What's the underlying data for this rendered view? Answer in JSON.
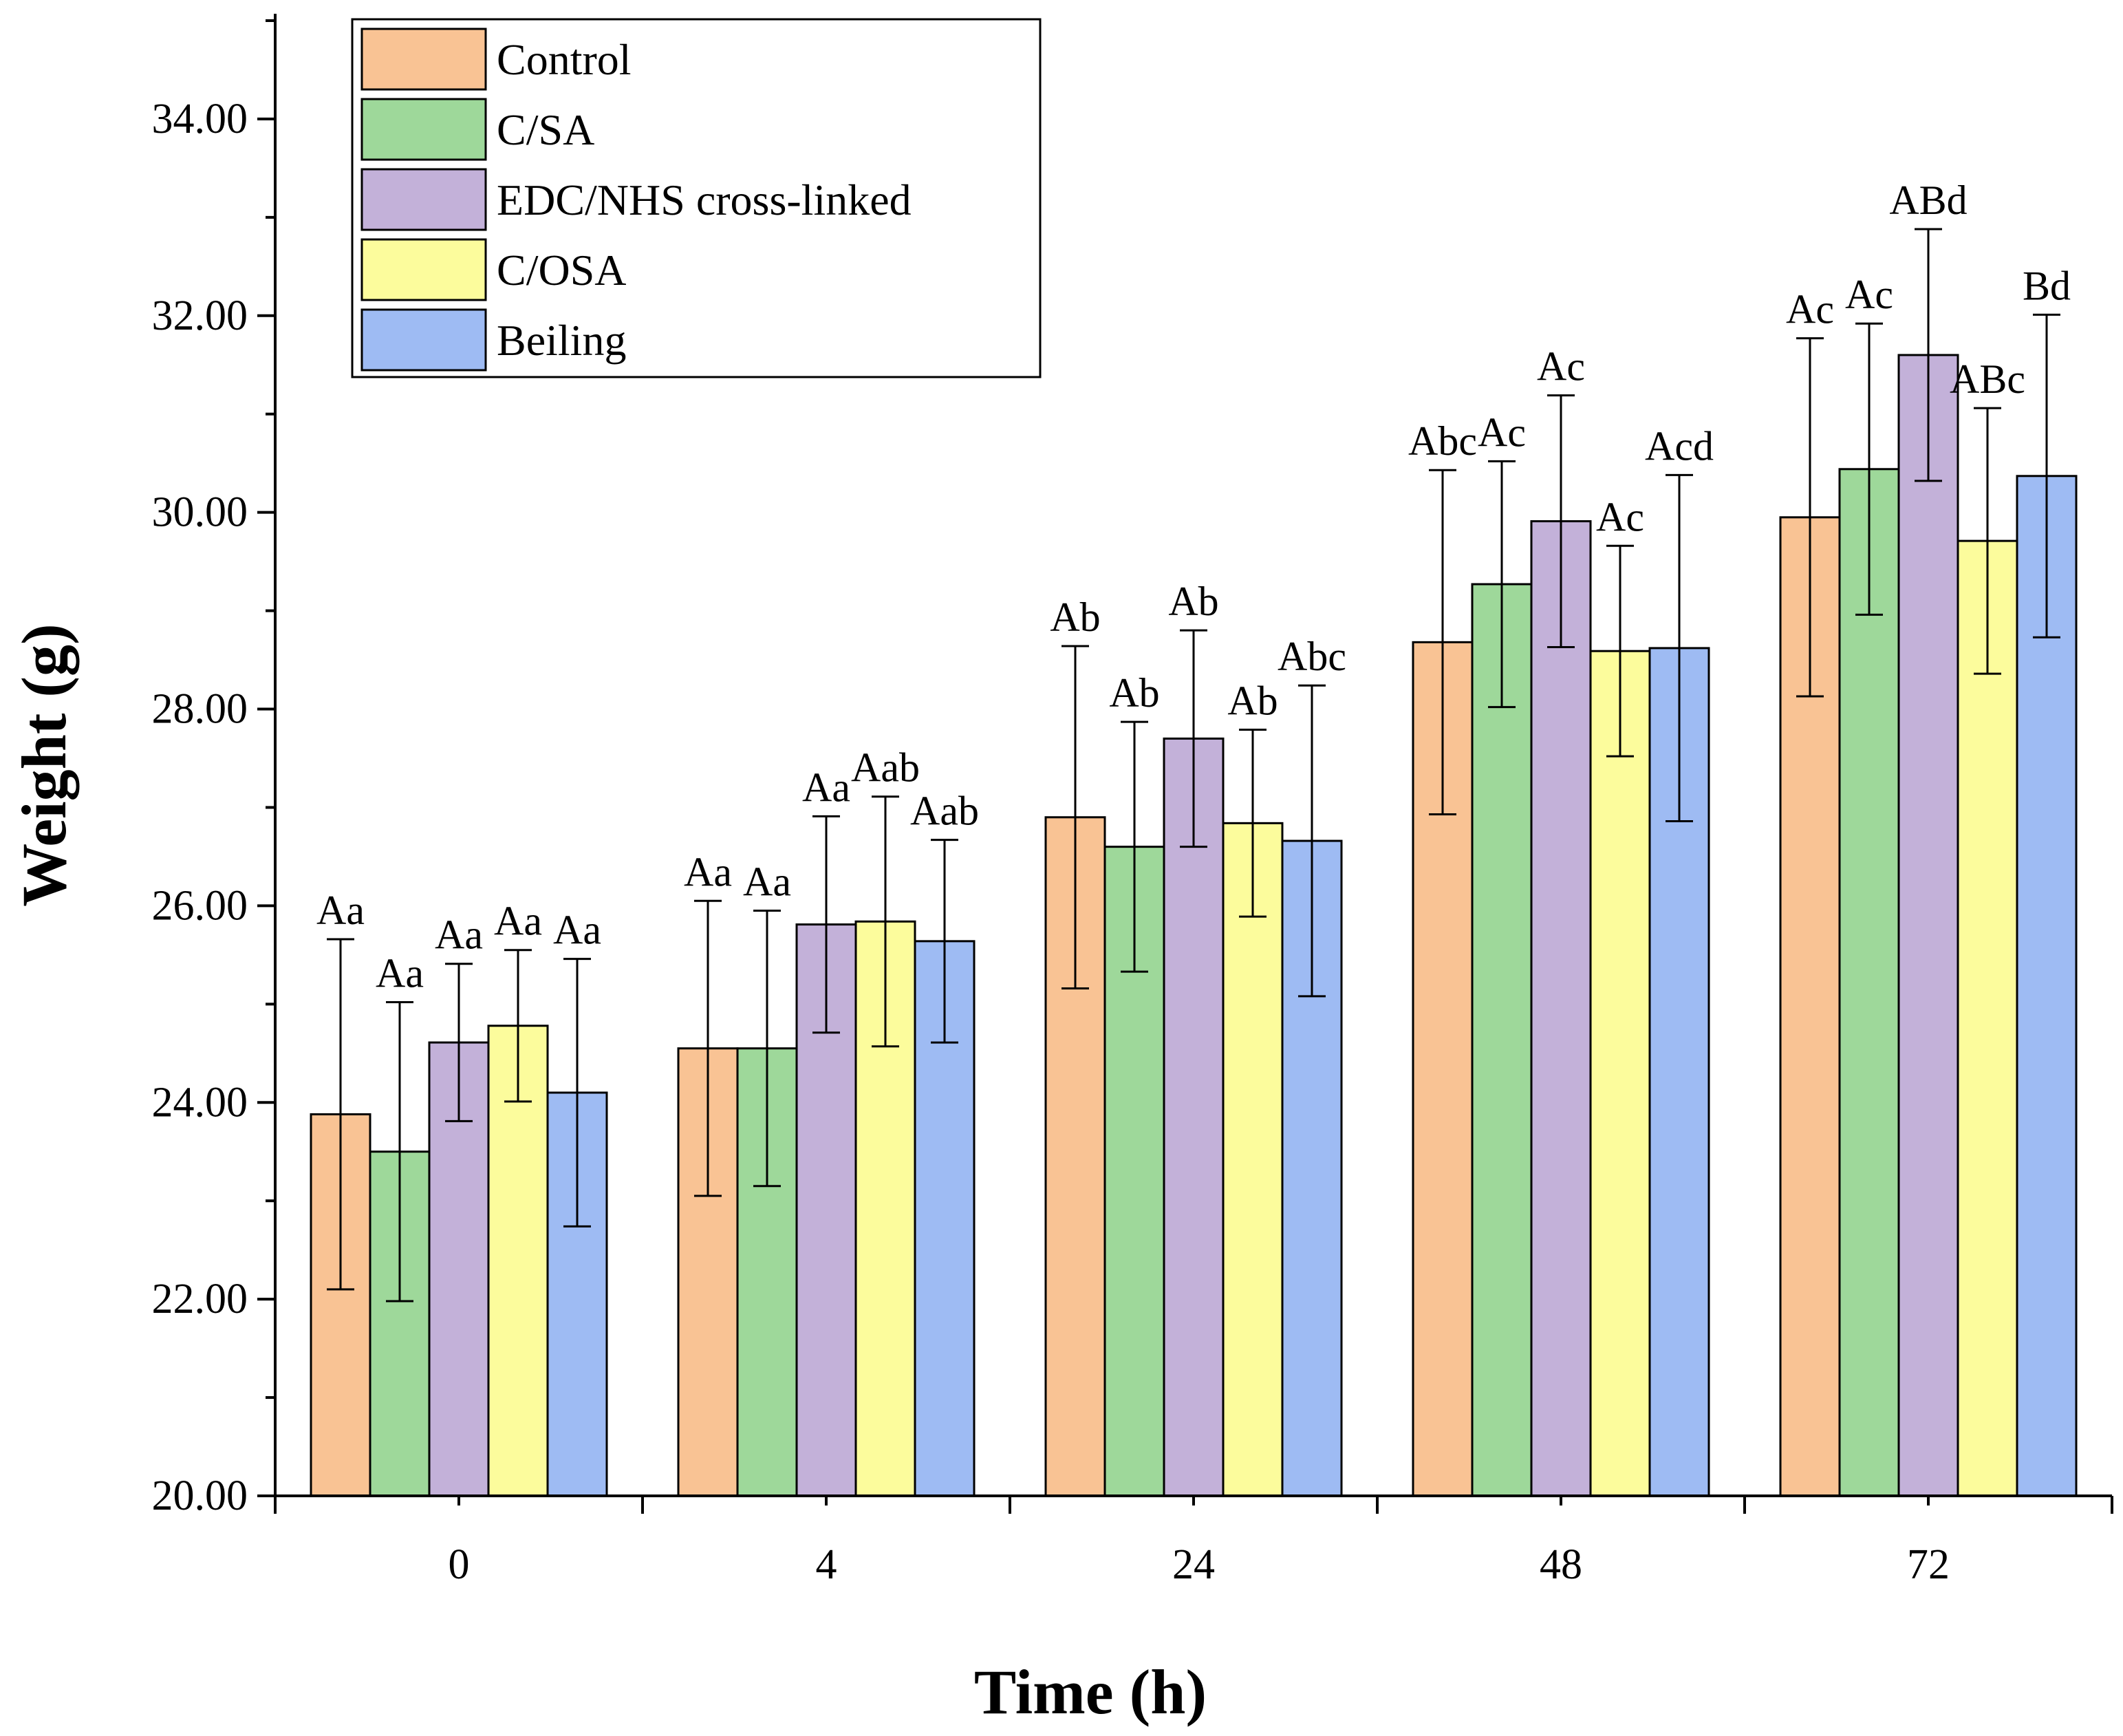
{
  "chart_data": {
    "type": "bar",
    "title": "",
    "xlabel": "Time (h)",
    "ylabel": "Weight (g)",
    "ylim": [
      20,
      35
    ],
    "yticks": [
      "20.00",
      "22.00",
      "24.00",
      "26.00",
      "28.00",
      "30.00",
      "32.00",
      "34.00"
    ],
    "categories": [
      "0",
      "4",
      "24",
      "48",
      "72"
    ],
    "legend_position": "top-left",
    "grid": false,
    "series": [
      {
        "name": "Control",
        "color": "#F9C394",
        "values": [
          23.88,
          24.55,
          26.9,
          28.68,
          29.95
        ],
        "errors": [
          1.78,
          1.5,
          1.74,
          1.75,
          1.82
        ],
        "labels": [
          "Aa",
          "Aa",
          "Ab",
          "Abc",
          "Ac"
        ]
      },
      {
        "name": "C/SA",
        "color": "#9ED89A",
        "values": [
          23.5,
          24.55,
          26.6,
          29.27,
          30.44
        ],
        "errors": [
          1.52,
          1.4,
          1.27,
          1.25,
          1.48
        ],
        "labels": [
          "Aa",
          "Aa",
          "Ab",
          "Ac",
          "Ac"
        ]
      },
      {
        "name": "EDC/NHS cross-linked",
        "color": "#C3B1D9",
        "values": [
          24.61,
          25.81,
          27.7,
          29.91,
          31.6
        ],
        "errors": [
          0.8,
          1.1,
          1.1,
          1.28,
          1.28
        ],
        "labels": [
          "Aa",
          "Aa",
          "Ab",
          "Ac",
          "ABd"
        ]
      },
      {
        "name": "C/OSA",
        "color": "#FCFC9C",
        "values": [
          24.78,
          25.84,
          26.84,
          28.59,
          29.71
        ],
        "errors": [
          0.77,
          1.27,
          0.95,
          1.07,
          1.35
        ],
        "labels": [
          "Aa",
          "Aab",
          "Ab",
          "Ac",
          "ABc"
        ]
      },
      {
        "name": "Beiling",
        "color": "#9EBBF3",
        "values": [
          24.1,
          25.64,
          26.66,
          28.62,
          30.37
        ],
        "errors": [
          1.36,
          1.03,
          1.58,
          1.76,
          1.64
        ],
        "labels": [
          "Aa",
          "Aab",
          "Abc",
          "Acd",
          "Bd"
        ]
      }
    ]
  }
}
